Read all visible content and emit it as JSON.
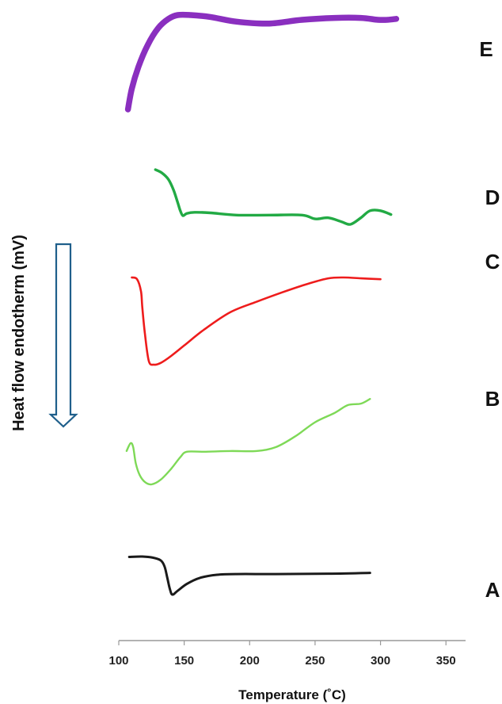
{
  "chart_data": {
    "type": "line",
    "xlabel": "Temperature (˚C)",
    "ylabel": "Heat flow endotherm (mV)",
    "xlim": [
      100,
      365
    ],
    "xticks": [
      100,
      150,
      200,
      250,
      300,
      350
    ],
    "grid": false,
    "series": [
      {
        "name": "A",
        "color": "#1a1a1a",
        "x": [
          108,
          118,
          126,
          132,
          135,
          137,
          139,
          141,
          145,
          152,
          162,
          175,
          190,
          220,
          260,
          292
        ],
        "y": [
          0.99,
          1.0,
          0.97,
          0.9,
          0.74,
          0.45,
          0.15,
          0.0,
          0.1,
          0.28,
          0.44,
          0.52,
          0.54,
          0.54,
          0.55,
          0.57
        ]
      },
      {
        "name": "B",
        "color": "#7ed957",
        "x": [
          106,
          109,
          111,
          113,
          116,
          120,
          125,
          132,
          140,
          147,
          152,
          165,
          185,
          205,
          220,
          235,
          250,
          265,
          275,
          285,
          292
        ],
        "y": [
          0.43,
          0.53,
          0.48,
          0.27,
          0.12,
          0.03,
          0.0,
          0.06,
          0.2,
          0.35,
          0.42,
          0.42,
          0.43,
          0.43,
          0.48,
          0.62,
          0.8,
          0.92,
          1.02,
          1.04,
          1.1
        ]
      },
      {
        "name": "C",
        "color": "#ee1c1c",
        "x": [
          110,
          114,
          117,
          118,
          120,
          123,
          127,
          132,
          140,
          150,
          165,
          185,
          205,
          225,
          245,
          260,
          272,
          285,
          300
        ],
        "y": [
          1.0,
          0.98,
          0.84,
          0.65,
          0.35,
          0.04,
          0.0,
          0.02,
          0.1,
          0.22,
          0.4,
          0.6,
          0.72,
          0.83,
          0.93,
          0.99,
          1.0,
          0.99,
          0.98
        ]
      },
      {
        "name": "D",
        "color": "#22aa44",
        "x": [
          128,
          133,
          138,
          142,
          145,
          147,
          149,
          152,
          158,
          170,
          190,
          215,
          240,
          250,
          260,
          270,
          277,
          285,
          292,
          300,
          308
        ],
        "y": [
          1.0,
          0.94,
          0.82,
          0.62,
          0.4,
          0.25,
          0.16,
          0.2,
          0.22,
          0.21,
          0.17,
          0.17,
          0.17,
          0.1,
          0.12,
          0.05,
          0.0,
          0.12,
          0.25,
          0.25,
          0.18
        ]
      },
      {
        "name": "E",
        "color": "#8a2fbf",
        "x": [
          107,
          110,
          115,
          122,
          130,
          138,
          145,
          155,
          170,
          190,
          215,
          240,
          265,
          285,
          298,
          305,
          312
        ],
        "y": [
          0.0,
          0.22,
          0.45,
          0.68,
          0.86,
          0.96,
          1.0,
          1.0,
          0.98,
          0.93,
          0.91,
          0.95,
          0.97,
          0.97,
          0.95,
          0.95,
          0.96
        ]
      }
    ]
  }
}
